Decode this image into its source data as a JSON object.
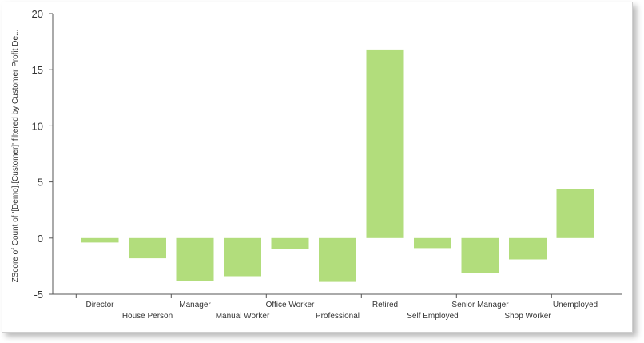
{
  "chart_data": {
    "type": "bar",
    "ylabel": "ZScore of Count of '[Demo].[Customer]' filtered by Customer Profit De...",
    "xlabel": "",
    "ylim": [
      -5,
      20
    ],
    "yticks": [
      -5,
      0,
      5,
      10,
      15,
      20
    ],
    "categories": [
      "Director",
      "House Person",
      "Manager",
      "Manual Worker",
      "Office Worker",
      "Professional",
      "Retired",
      "Self Employed",
      "Senior Manager",
      "Shop Worker",
      "Unemployed"
    ],
    "values": [
      -0.4,
      -1.8,
      -3.8,
      -3.4,
      -1.0,
      -3.9,
      16.8,
      -0.9,
      -3.1,
      -1.9,
      4.4
    ],
    "bar_color": "#b2dd7c",
    "grid": false,
    "legend": "none"
  }
}
